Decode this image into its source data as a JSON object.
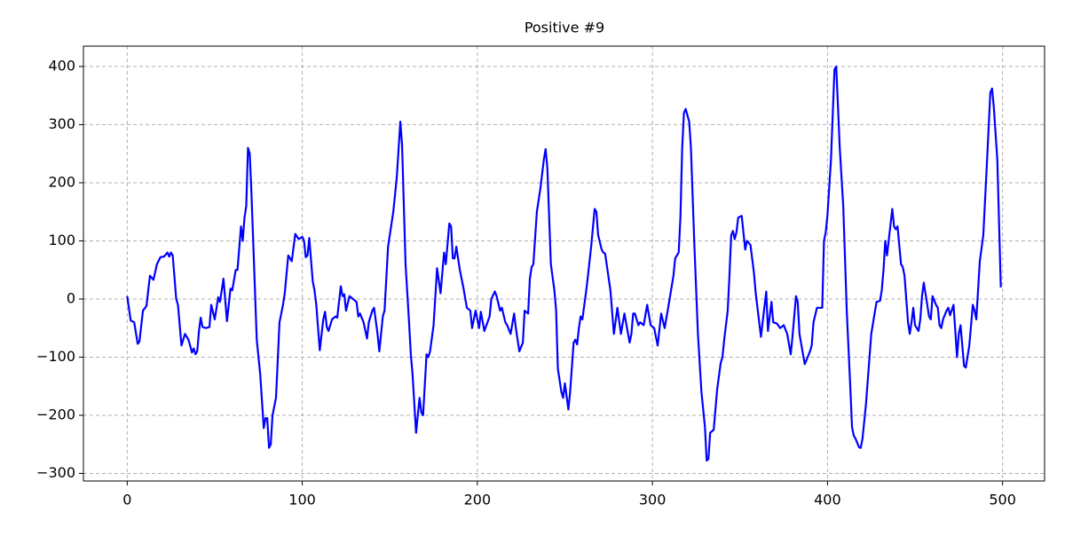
{
  "chart_data": {
    "type": "line",
    "title": "Positive #9",
    "xlim": [
      -25,
      524
    ],
    "ylim": [
      -313,
      435
    ],
    "xticks": [
      0,
      100,
      200,
      300,
      400,
      500
    ],
    "yticks": [
      {
        "value": -300,
        "label": "−300"
      },
      {
        "value": -200,
        "label": "−200"
      },
      {
        "value": -100,
        "label": "−100"
      },
      0,
      100,
      200,
      300,
      400
    ],
    "grid": true,
    "series": [
      {
        "color": "#0000ff",
        "x": [
          0,
          2,
          4,
          6,
          7,
          9,
          11,
          13,
          15,
          17,
          19,
          21,
          23,
          24,
          25,
          26,
          28,
          29,
          31,
          33,
          35,
          37,
          38,
          39,
          40,
          41,
          42,
          43,
          45,
          47,
          48,
          50,
          52,
          53,
          55,
          57,
          59,
          60,
          62,
          63,
          65,
          66,
          67,
          68,
          69,
          70,
          71,
          74,
          76,
          78,
          79,
          80,
          81,
          82,
          83,
          85,
          87,
          89,
          90,
          92,
          94,
          96,
          98,
          100,
          101,
          102,
          103,
          104,
          106,
          107,
          108,
          110,
          112,
          113,
          114,
          115,
          117,
          119,
          120,
          122,
          123,
          124,
          125,
          127,
          129,
          131,
          132,
          133,
          135,
          137,
          138,
          140,
          141,
          143,
          144,
          146,
          147,
          149,
          152,
          154,
          156,
          157,
          159,
          161,
          162,
          163,
          165,
          167,
          168,
          169,
          171,
          172,
          173,
          175,
          177,
          179,
          181,
          182,
          184,
          185,
          186,
          187,
          188,
          190,
          192,
          194,
          196,
          197,
          199,
          201,
          202,
          204,
          207,
          208,
          210,
          211,
          213,
          214,
          216,
          217,
          219,
          221,
          222,
          224,
          226,
          227,
          229,
          230,
          231,
          232,
          234,
          236,
          238,
          239,
          240,
          242,
          244,
          245,
          246,
          248,
          249,
          250,
          252,
          253,
          255,
          256,
          257,
          258,
          259,
          260,
          262,
          263,
          265,
          267,
          268,
          269,
          271,
          272,
          273,
          276,
          278,
          280,
          282,
          284,
          287,
          288,
          289,
          290,
          292,
          293,
          295,
          297,
          299,
          301,
          303,
          305,
          307,
          309,
          312,
          313,
          315,
          316,
          317,
          318,
          319,
          321,
          322,
          324,
          326,
          328,
          330,
          331,
          332,
          333,
          335,
          337,
          339,
          340,
          341,
          343,
          344,
          345,
          346,
          347,
          348,
          349,
          351,
          353,
          354,
          356,
          358,
          359,
          361,
          362,
          365,
          366,
          368,
          369,
          371,
          373,
          375,
          377,
          379,
          380,
          382,
          383,
          384,
          386,
          387,
          388,
          390,
          391,
          392,
          394,
          397,
          398,
          399,
          400,
          402,
          404,
          405,
          407,
          409,
          411,
          413,
          414,
          415,
          416,
          418,
          419,
          420,
          422,
          425,
          428,
          430,
          431,
          432,
          433,
          434,
          437,
          438,
          439,
          440,
          442,
          443,
          444,
          446,
          447,
          448,
          449,
          450,
          452,
          453,
          454,
          455,
          457,
          458,
          459,
          460,
          462,
          463,
          464,
          465,
          466,
          468,
          469,
          470,
          472,
          474,
          475,
          476,
          478,
          479,
          481,
          482,
          483,
          484,
          485,
          487,
          489,
          491,
          493,
          494,
          495,
          497,
          499
        ],
        "values": [
          5,
          -37,
          -40,
          -77,
          -73,
          -20,
          -12,
          40,
          33,
          60,
          72,
          73,
          80,
          73,
          80,
          75,
          0,
          -10,
          -80,
          -60,
          -70,
          -92,
          -85,
          -95,
          -90,
          -55,
          -32,
          -48,
          -50,
          -48,
          -10,
          -35,
          3,
          -5,
          35,
          -38,
          18,
          15,
          50,
          50,
          125,
          100,
          140,
          160,
          260,
          250,
          180,
          -70,
          -130,
          -222,
          -205,
          -205,
          -256,
          -250,
          -200,
          -170,
          -40,
          -10,
          10,
          75,
          65,
          112,
          103,
          107,
          100,
          72,
          75,
          105,
          30,
          15,
          -10,
          -88,
          -35,
          -22,
          -48,
          -55,
          -35,
          -30,
          -32,
          22,
          5,
          8,
          -20,
          5,
          0,
          -5,
          -30,
          -25,
          -40,
          -68,
          -40,
          -20,
          -15,
          -60,
          -90,
          -30,
          -20,
          90,
          150,
          210,
          305,
          265,
          60,
          -40,
          -95,
          -130,
          -230,
          -170,
          -195,
          -200,
          -95,
          -100,
          -90,
          -45,
          53,
          10,
          80,
          60,
          130,
          125,
          70,
          70,
          90,
          50,
          20,
          -15,
          -20,
          -50,
          -20,
          -50,
          -22,
          -55,
          -30,
          0,
          13,
          5,
          -20,
          -15,
          -40,
          -45,
          -60,
          -25,
          -50,
          -90,
          -75,
          -20,
          -25,
          35,
          55,
          60,
          150,
          190,
          240,
          258,
          225,
          60,
          15,
          -20,
          -120,
          -160,
          -170,
          -145,
          -190,
          -160,
          -75,
          -70,
          -78,
          -50,
          -30,
          -35,
          10,
          35,
          90,
          155,
          150,
          110,
          85,
          80,
          78,
          15,
          -60,
          -15,
          -60,
          -25,
          -75,
          -60,
          -25,
          -25,
          -45,
          -40,
          -45,
          -10,
          -45,
          -50,
          -80,
          -25,
          -50,
          -15,
          40,
          70,
          80,
          140,
          260,
          320,
          327,
          305,
          260,
          90,
          -60,
          -160,
          -220,
          -278,
          -275,
          -230,
          -225,
          -155,
          -110,
          -100,
          -70,
          -20,
          40,
          110,
          117,
          103,
          115,
          140,
          143,
          85,
          100,
          93,
          45,
          10,
          -40,
          -65,
          13,
          -55,
          -5,
          -40,
          -42,
          -50,
          -45,
          -60,
          -95,
          -65,
          5,
          -5,
          -60,
          -95,
          -112,
          -105,
          -90,
          -80,
          -40,
          -15,
          -15,
          100,
          115,
          145,
          240,
          395,
          400,
          260,
          160,
          -20,
          -150,
          -220,
          -235,
          -240,
          -255,
          -256,
          -240,
          -180,
          -60,
          -5,
          -3,
          15,
          50,
          100,
          75,
          155,
          125,
          120,
          125,
          60,
          55,
          40,
          -40,
          -60,
          -40,
          -15,
          -45,
          -55,
          -35,
          5,
          28,
          -10,
          -30,
          -35,
          5,
          -10,
          -15,
          -45,
          -50,
          -35,
          -20,
          -15,
          -28,
          -10,
          -100,
          -60,
          -45,
          -115,
          -118,
          -80,
          -45,
          -10,
          -20,
          -35,
          65,
          110,
          230,
          355,
          362,
          330,
          240,
          20
        ]
      }
    ]
  }
}
